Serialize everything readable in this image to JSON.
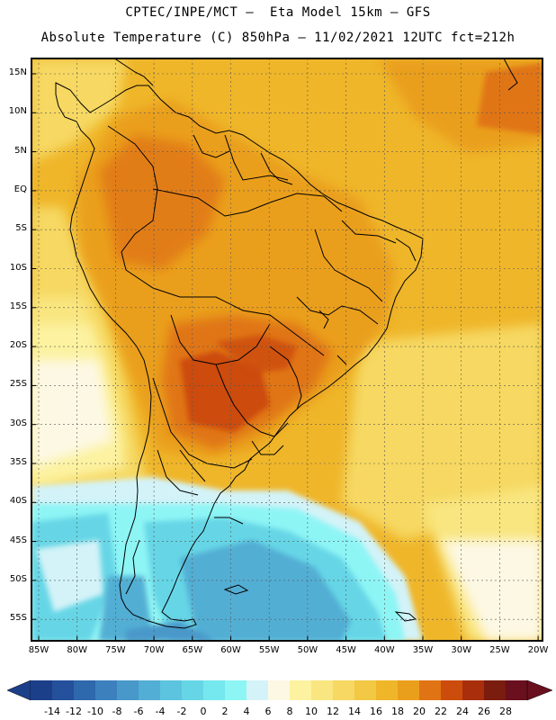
{
  "title": {
    "line1": "CPTEC/INPE/MCT –  Eta Model 15km – GFS",
    "line2": "Absolute Temperature (C) 850hPa – 11/02/2021 12UTC fct=212h"
  },
  "axes": {
    "lat_labels": [
      "15N",
      "10N",
      "5N",
      "EQ",
      "5S",
      "10S",
      "15S",
      "20S",
      "25S",
      "30S",
      "35S",
      "40S",
      "45S",
      "50S",
      "55S"
    ],
    "lon_labels": [
      "85W",
      "80W",
      "75W",
      "70W",
      "65W",
      "60W",
      "55W",
      "50W",
      "45W",
      "40W",
      "35W",
      "30W",
      "25W",
      "20W"
    ]
  },
  "colorbar": {
    "labels": [
      "-14",
      "-12",
      "-10",
      "-8",
      "-6",
      "-4",
      "-2",
      "0",
      "2",
      "4",
      "6",
      "8",
      "10",
      "12",
      "14",
      "16",
      "18",
      "20",
      "22",
      "24",
      "26",
      "28"
    ],
    "colors": [
      "#1c3f8a",
      "#24509c",
      "#2e68ad",
      "#3c80bd",
      "#4898c9",
      "#52aed4",
      "#5cc4de",
      "#66d6e6",
      "#74e8ee",
      "#8ef5f5",
      "#d3f3f8",
      "#fdf8e4",
      "#fcf2a0",
      "#f9e680",
      "#f6d862",
      "#f2c844",
      "#efb62a",
      "#ea9f1c",
      "#e07414",
      "#cc4c0c",
      "#a82e0c",
      "#7a1c0e",
      "#6a0f1e"
    ]
  }
}
